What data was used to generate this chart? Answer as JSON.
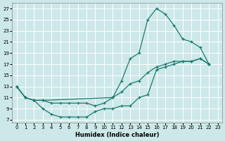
{
  "background_color": "#cde8e8",
  "grid_color": "#b0d8d8",
  "line_color": "#1a7a6e",
  "xlabel": "Humidex (Indice chaleur)",
  "xlim": [
    -0.5,
    23.5
  ],
  "ylim": [
    6.5,
    28
  ],
  "xticks": [
    0,
    1,
    2,
    3,
    4,
    5,
    6,
    7,
    8,
    9,
    10,
    11,
    12,
    13,
    14,
    15,
    16,
    17,
    18,
    19,
    20,
    21,
    22,
    23
  ],
  "yticks": [
    7,
    9,
    11,
    13,
    15,
    17,
    19,
    21,
    23,
    25,
    27
  ],
  "curve1_x": [
    0,
    1,
    2,
    3,
    11,
    12,
    13,
    14,
    15,
    16,
    17,
    18,
    19,
    20,
    21,
    22
  ],
  "curve1_y": [
    13,
    11,
    10.5,
    10.5,
    11,
    14,
    18,
    19,
    25,
    27,
    26,
    24,
    21.5,
    21,
    20,
    17
  ],
  "curve2_x": [
    0,
    1,
    2,
    3,
    4,
    5,
    6,
    7,
    8,
    9,
    10,
    11,
    12,
    13,
    14,
    15,
    16,
    17,
    18,
    19,
    20,
    21,
    22
  ],
  "curve2_y": [
    13,
    11,
    10.5,
    10.5,
    10,
    10,
    10,
    10,
    10,
    9.5,
    10,
    11,
    12,
    13.5,
    14,
    15.5,
    16.5,
    17,
    17.5,
    17.5,
    17.5,
    18,
    17
  ],
  "curve3_x": [
    0,
    1,
    2,
    3,
    4,
    5,
    6,
    7,
    8,
    9,
    10,
    11,
    12,
    13,
    14,
    15,
    16,
    17,
    18,
    19,
    20,
    21,
    22
  ],
  "curve3_y": [
    13,
    11,
    10.5,
    9,
    8,
    7.5,
    7.5,
    7.5,
    7.5,
    8.5,
    9,
    9,
    9.5,
    9.5,
    11,
    11.5,
    16,
    16.5,
    17,
    17.5,
    17.5,
    18,
    17
  ]
}
